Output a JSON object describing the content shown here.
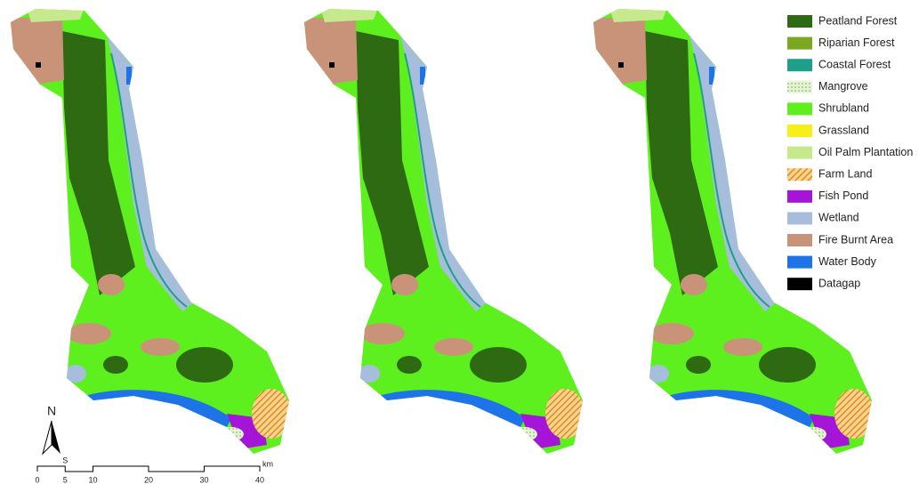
{
  "legend": [
    {
      "label": "Peatland Forest",
      "color": "#2d6a12"
    },
    {
      "label": "Riparian Forest",
      "color": "#7aa81e"
    },
    {
      "label": "Coastal Forest",
      "color": "#1f9e8a"
    },
    {
      "label": "Mangrove",
      "color": "#cfe8b0",
      "pattern": "dots"
    },
    {
      "label": "Shrubland",
      "color": "#5ef01e"
    },
    {
      "label": "Grassland",
      "color": "#f6f01a"
    },
    {
      "label": "Oil Palm Plantation",
      "color": "#c6e98e"
    },
    {
      "label": "Farm Land",
      "color": "#e8922e",
      "pattern": "hatch"
    },
    {
      "label": "Fish Pond",
      "color": "#a415d8"
    },
    {
      "label": "Wetland",
      "color": "#a6bedb"
    },
    {
      "label": "Fire Burnt Area",
      "color": "#c9937a"
    },
    {
      "label": "Water Body",
      "color": "#1e73e8"
    },
    {
      "label": "Datagap",
      "color": "#000000"
    }
  ],
  "north_arrow": "N",
  "scale_bar": {
    "unit": "km",
    "mark": "S",
    "ticks": [
      0,
      5,
      10,
      20,
      30,
      40
    ]
  }
}
